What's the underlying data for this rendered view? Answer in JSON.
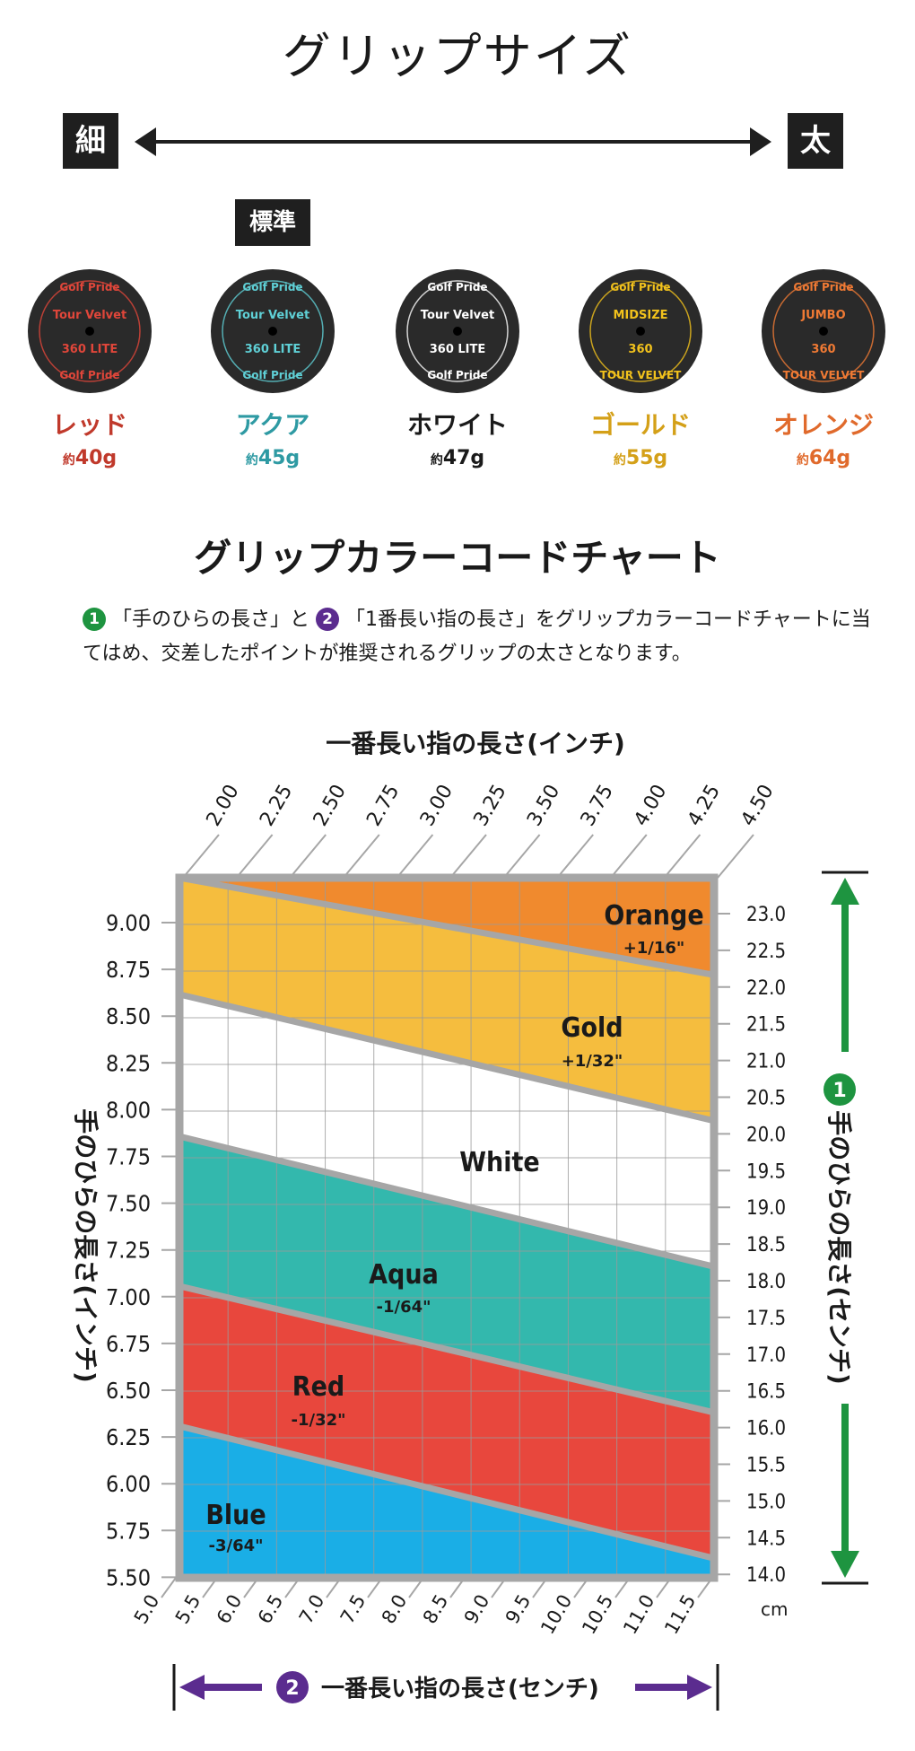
{
  "page_title": "グリップサイズ",
  "size_scale": {
    "thin": "細",
    "thick": "太"
  },
  "standard_badge": "標準",
  "grips": [
    {
      "name": "レッド",
      "weight_prefix": "約",
      "weight": "40g",
      "color": "#c0392b",
      "disc_text": [
        "Golf Pride",
        "Tour Velvet",
        "360 LITE",
        "Golf Pride"
      ],
      "disc_color": "#e0463a"
    },
    {
      "name": "アクア",
      "weight_prefix": "約",
      "weight": "45g",
      "color": "#2e9aa3",
      "disc_text": [
        "Golf Pride",
        "Tour Velvet",
        "360 LITE",
        "Golf Pride"
      ],
      "disc_color": "#5fd0d6"
    },
    {
      "name": "ホワイト",
      "weight_prefix": "約",
      "weight": "47g",
      "color": "#1a1a1a",
      "disc_text": [
        "Golf Pride",
        "Tour Velvet",
        "360 LITE",
        "Golf Pride"
      ],
      "disc_color": "#ffffff"
    },
    {
      "name": "ゴールド",
      "weight_prefix": "約",
      "weight": "55g",
      "color": "#d4a018",
      "disc_text": [
        "Golf Pride",
        "MIDSIZE",
        "360",
        "TOUR VELVET"
      ],
      "disc_color": "#f2c21c"
    },
    {
      "name": "オレンジ",
      "weight_prefix": "約",
      "weight": "64g",
      "color": "#e06a2c",
      "disc_text": [
        "Golf Pride",
        "JUMBO",
        "360",
        "TOUR VELVET"
      ],
      "disc_color": "#f07a34"
    }
  ],
  "chart_title": "グリップカラーコードチャート",
  "description": {
    "badge1": "1",
    "part1": "「手のひらの長さ」と",
    "badge2": "2",
    "part2": "「1番長い指の長さ」をグリップカラーコードチャートに当てはめ、交差したポイントが推奨されるグリップの太さとなります。"
  },
  "chart_data": {
    "type": "area",
    "top_axis_title": "一番長い指の長さ(インチ)",
    "top_ticks": [
      "2.00",
      "2.25",
      "2.50",
      "2.75",
      "3.00",
      "3.25",
      "3.50",
      "3.75",
      "4.00",
      "4.25",
      "4.50"
    ],
    "bottom_axis_title": "一番長い指の長さ(センチ)",
    "bottom_ticks": [
      "5.0",
      "5.5",
      "6.0",
      "6.5",
      "7.0",
      "7.5",
      "8.0",
      "8.5",
      "9.0",
      "9.5",
      "10.0",
      "10.5",
      "11.0",
      "11.5"
    ],
    "bottom_unit": "cm",
    "left_axis_title": "手のひらの長さ(インチ)",
    "left_ticks": [
      "9.00",
      "8.75",
      "8.50",
      "8.25",
      "8.00",
      "7.75",
      "7.50",
      "7.25",
      "7.00",
      "6.75",
      "6.50",
      "6.25",
      "6.00",
      "5.75",
      "5.50"
    ],
    "right_axis_title": "手のひらの長さ(センチ)",
    "right_ticks": [
      "23.0",
      "22.5",
      "22.0",
      "21.5",
      "21.0",
      "20.5",
      "20.0",
      "19.5",
      "19.0",
      "18.5",
      "18.0",
      "17.5",
      "17.0",
      "16.5",
      "16.0",
      "15.5",
      "15.0",
      "14.5",
      "14.0"
    ],
    "xlim": [
      2.0,
      4.5
    ],
    "ylim": [
      5.5,
      9.1
    ],
    "boundaries": [
      {
        "between": "Blue / Red",
        "y_at_x_min": 6.28,
        "y_at_x_max": 5.6
      },
      {
        "between": "Red / Aqua",
        "y_at_x_min": 7.0,
        "y_at_x_max": 6.35
      },
      {
        "between": "Aqua / White",
        "y_at_x_min": 7.77,
        "y_at_x_max": 7.1
      },
      {
        "between": "White / Gold",
        "y_at_x_min": 8.5,
        "y_at_x_max": 7.85
      },
      {
        "between": "Gold / Orange",
        "y_at_x_min": 9.1,
        "y_at_x_max": 8.6
      }
    ],
    "zones": [
      {
        "name": "Blue",
        "adjust": "-3/64\"",
        "color": "#1aaee6"
      },
      {
        "name": "Red",
        "adjust": "-1/32\"",
        "color": "#e8473d"
      },
      {
        "name": "Aqua",
        "adjust": "-1/64\"",
        "color": "#33b8ad"
      },
      {
        "name": "White",
        "adjust": "",
        "color": "#ffffff"
      },
      {
        "name": "Gold",
        "adjust": "+1/32\"",
        "color": "#f5bd3e"
      },
      {
        "name": "Orange",
        "adjust": "+1/16\"",
        "color": "#f08a2e"
      }
    ],
    "badge_palm": "1",
    "badge_finger": "2",
    "colors": {
      "frame": "#a6a6a6",
      "green": "#1e9440",
      "purple": "#5b2c8f"
    }
  }
}
